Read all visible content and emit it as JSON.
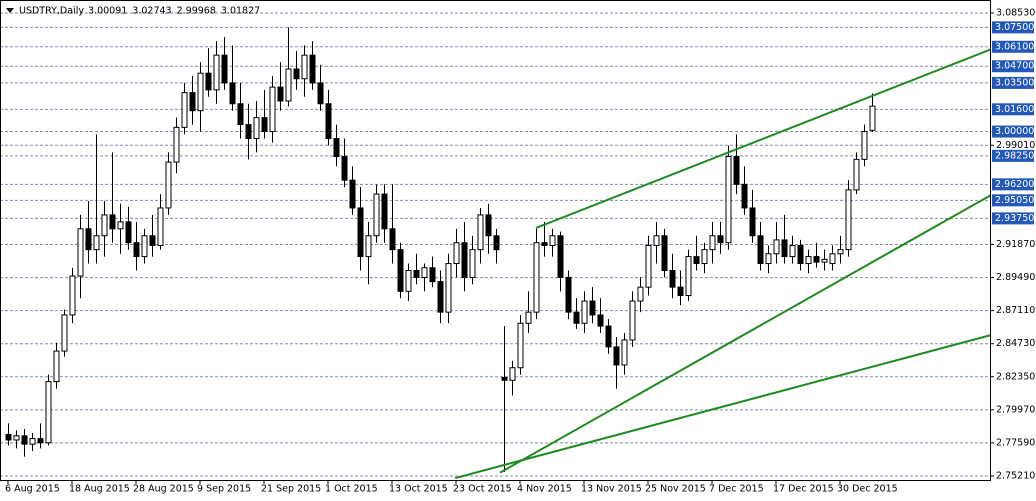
{
  "header": {
    "symbol": "USDTRY,Daily",
    "ohlc": [
      3.00091,
      3.02743,
      2.99968,
      3.01827
    ]
  },
  "chart_data": {
    "type": "candlestick",
    "categories": [
      "6 Aug 2015",
      null,
      null,
      null,
      null,
      null,
      null,
      null,
      "18 Aug 2015",
      null,
      null,
      null,
      null,
      null,
      null,
      null,
      "28 Aug 2015",
      null,
      null,
      null,
      null,
      null,
      null,
      null,
      "9 Sep 2015",
      null,
      null,
      null,
      null,
      null,
      null,
      null,
      "21 Sep 2015",
      null,
      null,
      null,
      null,
      null,
      null,
      null,
      "1 Oct 2015",
      null,
      null,
      null,
      null,
      null,
      null,
      null,
      "13 Oct 2015",
      null,
      null,
      null,
      null,
      null,
      null,
      null,
      "23 Oct 2015",
      null,
      null,
      null,
      null,
      null,
      null,
      null,
      "4 Nov 2015",
      null,
      null,
      null,
      null,
      null,
      null,
      null,
      "13 Nov 2015",
      null,
      null,
      null,
      null,
      null,
      null,
      null,
      "25 Nov 2015",
      null,
      null,
      null,
      null,
      null,
      null,
      null,
      "7 Dec 2015",
      null,
      null,
      null,
      null,
      null,
      null,
      null,
      "17 Dec 2015",
      null,
      null,
      null,
      null,
      null,
      null,
      null,
      "30 Dec 2015",
      null,
      null,
      null,
      null
    ],
    "open": [
      2.782,
      2.778,
      2.781,
      2.775,
      2.779,
      2.776,
      2.82,
      2.842,
      2.868,
      2.896,
      2.93,
      2.915,
      2.925,
      2.94,
      2.93,
      2.935,
      2.92,
      2.91,
      2.925,
      2.918,
      2.945,
      2.978,
      3.003,
      3.028,
      3.015,
      3.042,
      3.03,
      3.055,
      3.035,
      3.02,
      3.005,
      2.995,
      3.01,
      3.0,
      3.032,
      3.022,
      3.045,
      3.038,
      3.055,
      3.035,
      3.02,
      2.995,
      2.982,
      2.965,
      2.945,
      2.91,
      2.925,
      2.955,
      2.93,
      2.915,
      2.885,
      2.9,
      2.895,
      2.902,
      2.892,
      2.87,
      2.905,
      2.92,
      2.895,
      2.915,
      2.94,
      2.925,
      2.823,
      2.821,
      2.83,
      2.862,
      2.87,
      2.92,
      2.918,
      2.925,
      2.895,
      2.87,
      2.862,
      2.878,
      2.868,
      2.86,
      2.845,
      2.832,
      2.85,
      2.878,
      2.888,
      2.918,
      2.925,
      2.9,
      2.888,
      2.882,
      2.91,
      2.905,
      2.915,
      2.925,
      2.92,
      2.982,
      2.962,
      2.945,
      2.925,
      2.905,
      2.912,
      2.922,
      2.91,
      2.918,
      2.905,
      2.91,
      2.906,
      2.905,
      2.912,
      2.915,
      2.958,
      2.98,
      3.00091
    ],
    "high": [
      2.79,
      2.785,
      2.786,
      2.783,
      2.79,
      2.825,
      2.848,
      2.872,
      2.902,
      2.94,
      2.95,
      2.998,
      2.95,
      2.985,
      2.948,
      2.946,
      2.935,
      2.93,
      2.94,
      2.955,
      2.985,
      3.01,
      3.035,
      3.04,
      3.05,
      3.06,
      3.065,
      3.068,
      3.062,
      3.035,
      3.02,
      3.022,
      3.03,
      3.04,
      3.05,
      3.075,
      3.058,
      3.062,
      3.065,
      3.048,
      3.03,
      3.005,
      2.995,
      2.975,
      2.96,
      2.935,
      2.962,
      2.962,
      2.962,
      2.92,
      2.905,
      2.912,
      2.905,
      2.91,
      2.9,
      2.912,
      2.93,
      2.935,
      2.925,
      2.945,
      2.948,
      2.93,
      2.86,
      2.835,
      2.868,
      2.885,
      2.93,
      2.935,
      2.93,
      2.928,
      2.9,
      2.88,
      2.885,
      2.888,
      2.88,
      2.865,
      2.852,
      2.855,
      2.885,
      2.895,
      2.925,
      2.935,
      2.93,
      2.912,
      2.9,
      2.915,
      2.925,
      2.92,
      2.935,
      2.935,
      2.99,
      2.998,
      2.975,
      2.958,
      2.935,
      2.918,
      2.935,
      2.94,
      2.925,
      2.922,
      2.915,
      2.92,
      2.915,
      2.918,
      2.925,
      2.965,
      2.985,
      3.005,
      3.02743
    ],
    "low": [
      2.774,
      2.772,
      2.766,
      2.77,
      2.772,
      2.774,
      2.815,
      2.838,
      2.862,
      2.88,
      2.905,
      2.905,
      2.91,
      2.92,
      2.912,
      2.915,
      2.9,
      2.905,
      2.91,
      2.915,
      2.94,
      2.97,
      2.998,
      3.005,
      3.0,
      3.025,
      3.02,
      3.03,
      3.015,
      2.995,
      2.98,
      2.985,
      2.995,
      2.992,
      3.015,
      3.018,
      3.03,
      3.025,
      3.03,
      3.015,
      2.99,
      2.975,
      2.96,
      2.94,
      2.9,
      2.89,
      2.92,
      2.92,
      2.905,
      2.88,
      2.878,
      2.89,
      2.885,
      2.888,
      2.862,
      2.862,
      2.895,
      2.885,
      2.89,
      2.905,
      2.912,
      2.905,
      2.755,
      2.81,
      2.825,
      2.855,
      2.865,
      2.91,
      2.91,
      2.885,
      2.865,
      2.858,
      2.855,
      2.862,
      2.855,
      2.84,
      2.815,
      2.825,
      2.845,
      2.87,
      2.882,
      2.905,
      2.895,
      2.88,
      2.875,
      2.878,
      2.9,
      2.898,
      2.905,
      2.912,
      2.915,
      2.955,
      2.94,
      2.92,
      2.9,
      2.898,
      2.905,
      2.905,
      2.905,
      2.9,
      2.898,
      2.902,
      2.9,
      2.9,
      2.905,
      2.91,
      2.955,
      2.975,
      2.99968
    ],
    "close": [
      2.778,
      2.781,
      2.775,
      2.779,
      2.776,
      2.82,
      2.842,
      2.868,
      2.896,
      2.93,
      2.915,
      2.925,
      2.94,
      2.93,
      2.935,
      2.92,
      2.91,
      2.925,
      2.918,
      2.945,
      2.978,
      3.003,
      3.028,
      3.015,
      3.042,
      3.03,
      3.055,
      3.035,
      3.02,
      3.005,
      2.995,
      3.01,
      3.0,
      3.032,
      3.022,
      3.045,
      3.038,
      3.055,
      3.035,
      3.02,
      2.995,
      2.982,
      2.965,
      2.945,
      2.91,
      2.925,
      2.955,
      2.93,
      2.915,
      2.885,
      2.9,
      2.895,
      2.902,
      2.892,
      2.87,
      2.905,
      2.92,
      2.895,
      2.915,
      2.94,
      2.925,
      2.915,
      2.821,
      2.83,
      2.862,
      2.87,
      2.92,
      2.918,
      2.925,
      2.895,
      2.87,
      2.862,
      2.878,
      2.868,
      2.86,
      2.845,
      2.832,
      2.85,
      2.878,
      2.888,
      2.918,
      2.925,
      2.9,
      2.888,
      2.882,
      2.91,
      2.905,
      2.915,
      2.925,
      2.92,
      2.982,
      2.962,
      2.945,
      2.925,
      2.905,
      2.912,
      2.922,
      2.91,
      2.918,
      2.905,
      2.91,
      2.906,
      2.908,
      2.912,
      2.915,
      2.958,
      2.98,
      3.0,
      3.01827
    ],
    "up_color": "#ffffff",
    "down_color": "#000000",
    "ylim": [
      2.7492,
      3.0918
    ],
    "yticks": [
      {
        "value": 2.7521,
        "label": "2.75210"
      },
      {
        "value": 2.7759,
        "label": "2.77590"
      },
      {
        "value": 2.7997,
        "label": "2.79970"
      },
      {
        "value": 2.8235,
        "label": "2.82350"
      },
      {
        "value": 2.8473,
        "label": "2.84730"
      },
      {
        "value": 2.8711,
        "label": "2.87110"
      },
      {
        "value": 2.8949,
        "label": "2.89490"
      },
      {
        "value": 2.9187,
        "label": "2.91870"
      },
      {
        "value": 2.9901,
        "label": "2.99010"
      },
      {
        "value": 3.0853,
        "label": "3.08530"
      }
    ],
    "levels": [
      {
        "value": 3.075,
        "label": "3.07500"
      },
      {
        "value": 3.061,
        "label": "3.06100"
      },
      {
        "value": 3.047,
        "label": "3.04700"
      },
      {
        "value": 3.035,
        "label": "3.03500"
      },
      {
        "value": 3.016,
        "label": "3.01600"
      },
      {
        "value": 3.0,
        "label": "3.00000"
      },
      {
        "value": 2.9825,
        "label": "2.98250"
      },
      {
        "value": 2.962,
        "label": "2.96200"
      },
      {
        "value": 2.9505,
        "label": "2.95050"
      },
      {
        "value": 2.9375,
        "label": "2.93750"
      }
    ],
    "level_color": "#2458b8",
    "grid": true,
    "trendline_color": "#1f8a1f",
    "trendlines": [
      {
        "from": [
          66,
          2.9306
        ],
        "to": [
          128.4,
          3.0717
        ]
      },
      {
        "from": [
          61.5,
          2.7545
        ],
        "to": [
          128.4,
          2.9723
        ]
      },
      {
        "from": [
          55.9,
          2.7506
        ],
        "to": [
          128.4,
          2.862
        ]
      }
    ]
  }
}
